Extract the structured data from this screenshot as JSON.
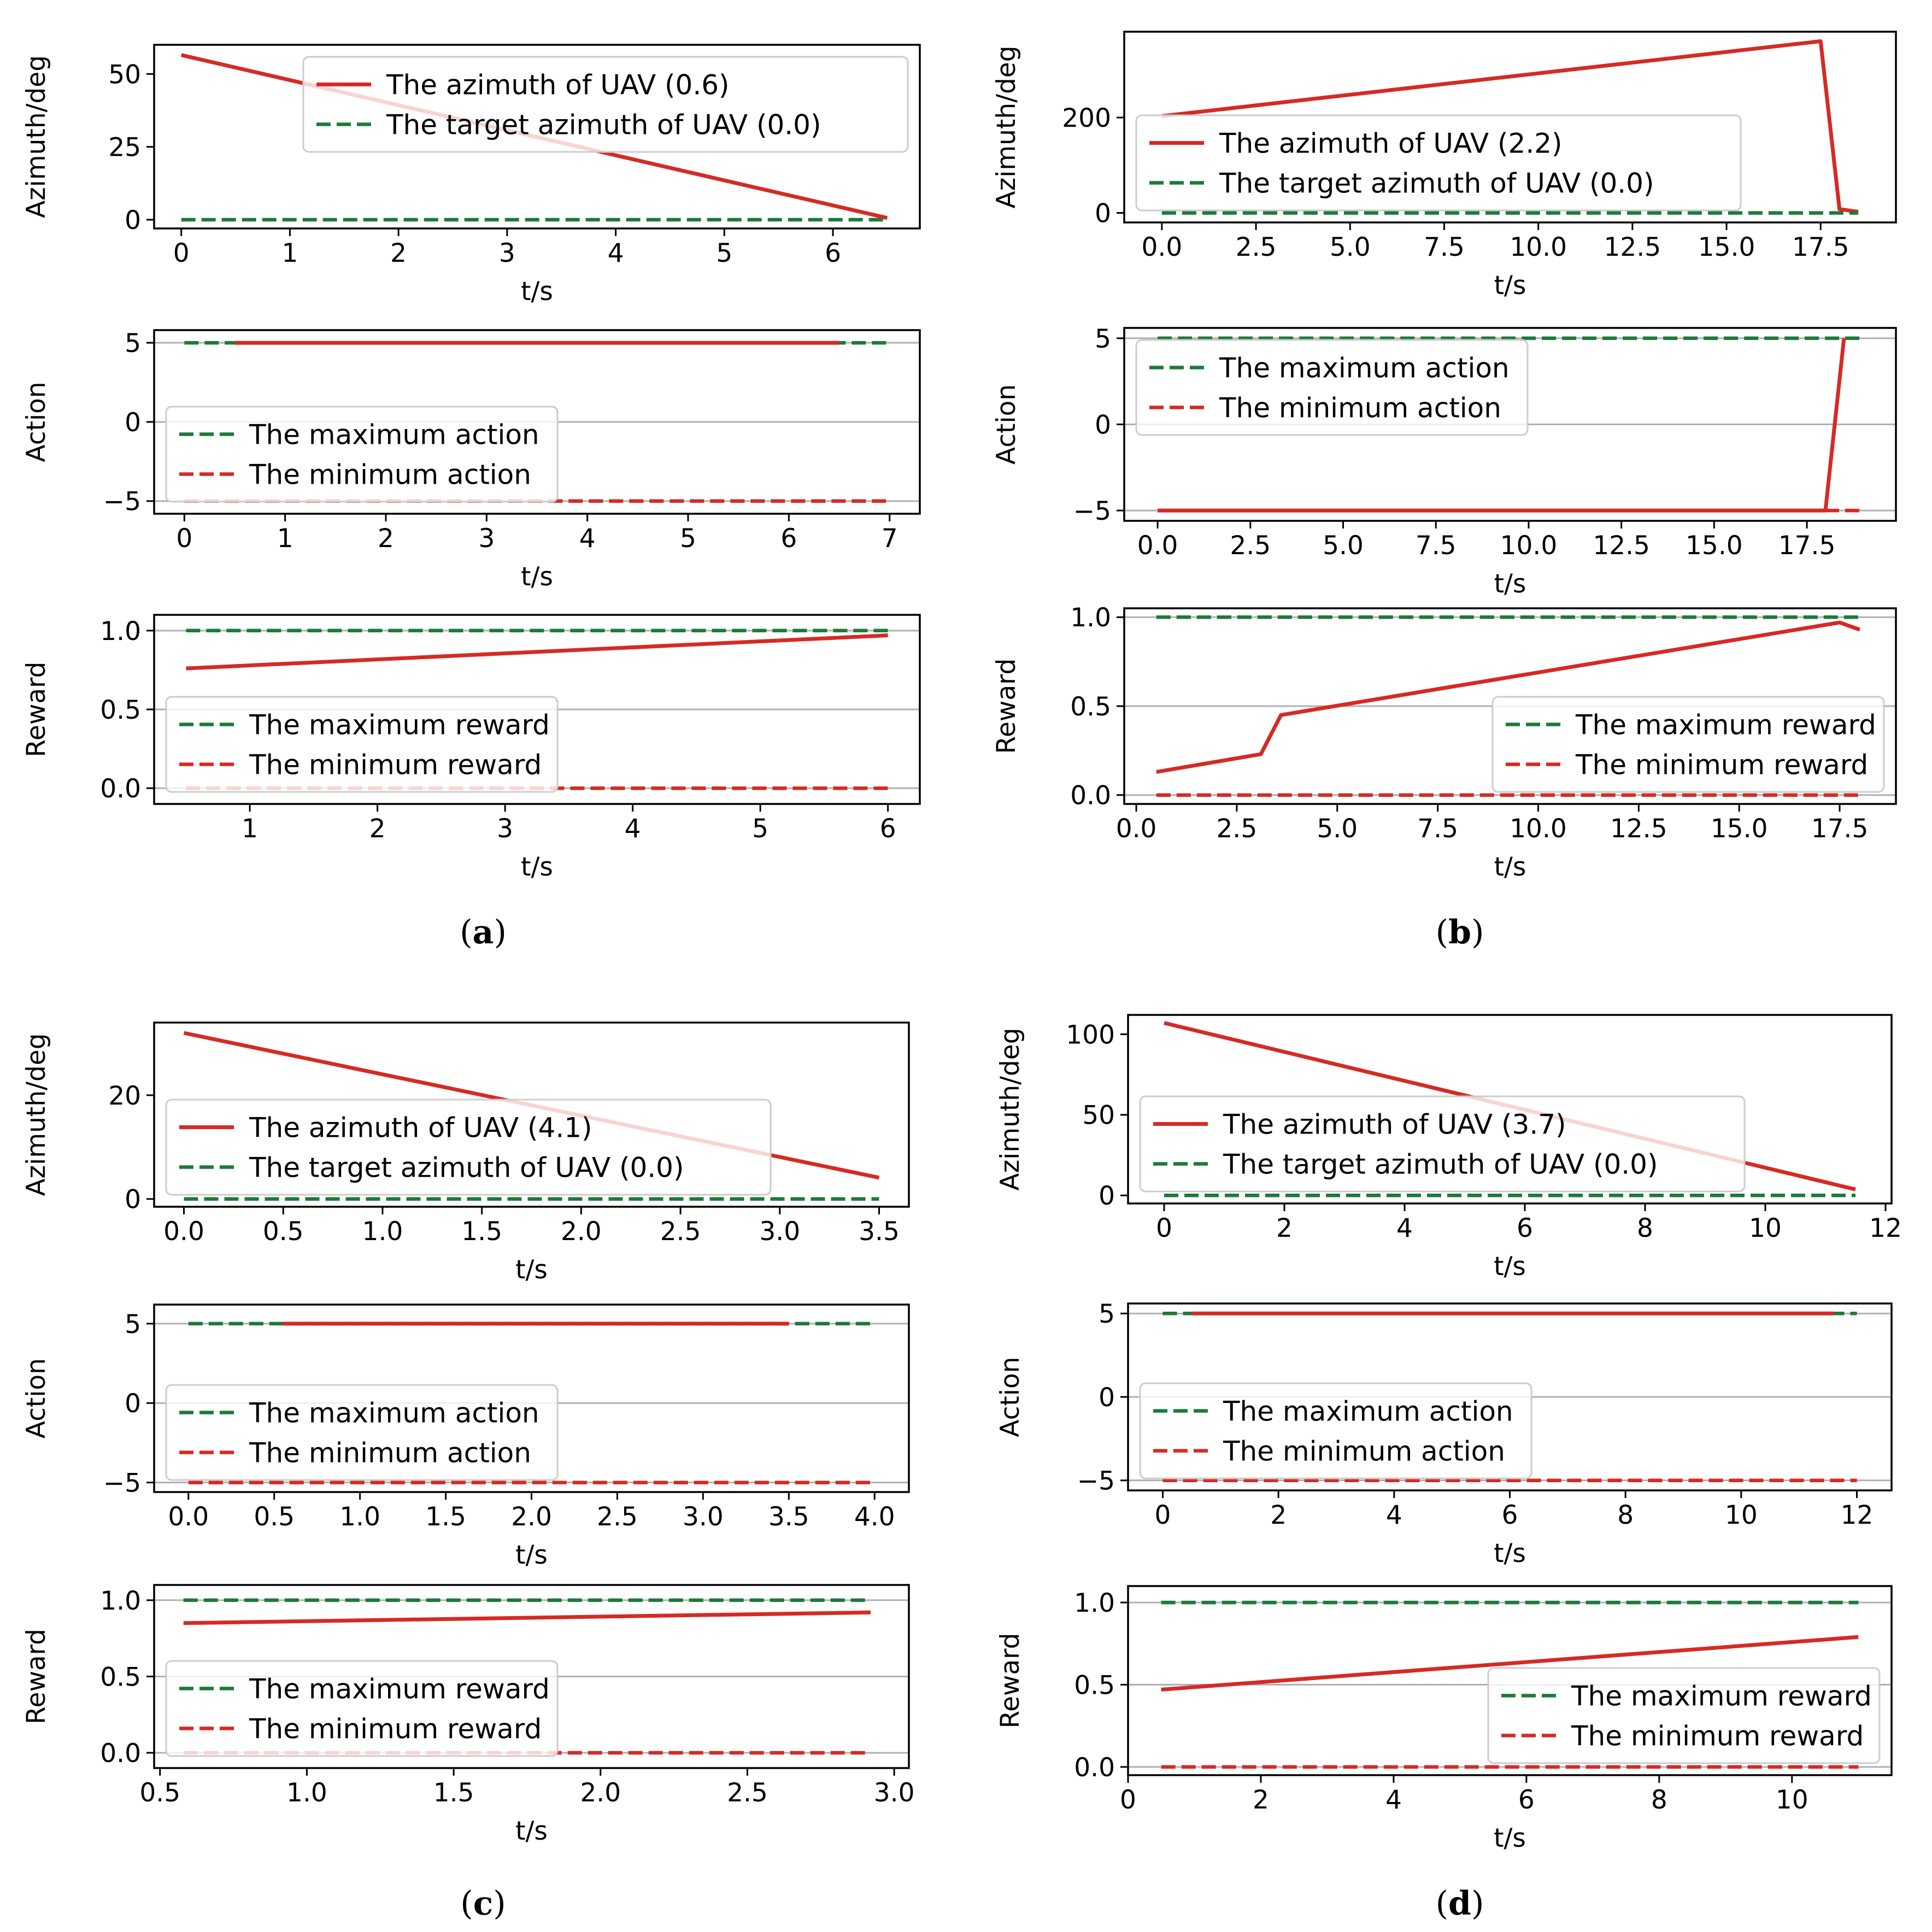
{
  "colors": {
    "red": "#d62a24",
    "green": "#1e7a3a",
    "grid": "#b0b0b0",
    "axis": "#000000"
  },
  "panels": [
    {
      "caption_letter": "a",
      "caption_open": "(",
      "caption_close": ")"
    },
    {
      "caption_letter": "b",
      "caption_open": "(",
      "caption_close": ")"
    },
    {
      "caption_letter": "c",
      "caption_open": "(",
      "caption_close": ")"
    },
    {
      "caption_letter": "d",
      "caption_open": "(",
      "caption_close": ")"
    }
  ],
  "chart_data": [
    {
      "type": "line",
      "panel": "a",
      "role": "azimuth",
      "xlabel": "t/s",
      "ylabel": "Azimuth/deg",
      "xlim": [
        -0.25,
        6.8
      ],
      "ylim": [
        -3,
        60
      ],
      "xticks": [
        0,
        1,
        2,
        3,
        4,
        5,
        6
      ],
      "xtick_labels": [
        "0",
        "1",
        "2",
        "3",
        "4",
        "5",
        "6"
      ],
      "yticks": [
        0,
        25,
        50
      ],
      "ytick_labels": [
        "0",
        "25",
        "50"
      ],
      "grid_y": false,
      "legend": "top-right",
      "series": [
        {
          "name": "The azimuth of UAV (0.6)",
          "color": "red",
          "dash": false,
          "x": [
            0,
            6.5
          ],
          "y": [
            56.5,
            0.6
          ]
        },
        {
          "name": "The target azimuth of UAV (0.0)",
          "color": "green",
          "dash": true,
          "x": [
            0,
            6.5
          ],
          "y": [
            0,
            0
          ]
        }
      ]
    },
    {
      "type": "line",
      "panel": "a",
      "role": "action",
      "xlabel": "t/s",
      "ylabel": "Action",
      "xlim": [
        -0.3,
        7.3
      ],
      "ylim": [
        -5.8,
        5.8
      ],
      "xticks": [
        0,
        1,
        2,
        3,
        4,
        5,
        6,
        7
      ],
      "xtick_labels": [
        "0",
        "1",
        "2",
        "3",
        "4",
        "5",
        "6",
        "7"
      ],
      "yticks": [
        -5,
        0,
        5
      ],
      "ytick_labels": [
        "−5",
        "0",
        "5"
      ],
      "grid_y": true,
      "legend": "lower-left",
      "series": [
        {
          "name": "The maximum action",
          "color": "green",
          "dash": true,
          "x": [
            0,
            7
          ],
          "y": [
            5,
            5
          ]
        },
        {
          "name": "The minimum action",
          "color": "red",
          "dash": true,
          "x": [
            0,
            7
          ],
          "y": [
            -5,
            -5
          ]
        },
        {
          "name": "",
          "color": "red",
          "dash": false,
          "x": [
            0.5,
            6.5
          ],
          "y": [
            5,
            5
          ]
        }
      ]
    },
    {
      "type": "line",
      "panel": "a",
      "role": "reward",
      "xlabel": "t/s",
      "ylabel": "Reward",
      "xlim": [
        0.25,
        6.25
      ],
      "ylim": [
        -0.1,
        1.1
      ],
      "xticks": [
        1,
        2,
        3,
        4,
        5,
        6
      ],
      "xtick_labels": [
        "1",
        "2",
        "3",
        "4",
        "5",
        "6"
      ],
      "yticks": [
        0,
        0.5,
        1.0
      ],
      "ytick_labels": [
        "0.0",
        "0.5",
        "1.0"
      ],
      "grid_y": true,
      "legend": "lower-left",
      "series": [
        {
          "name": "The maximum reward",
          "color": "green",
          "dash": true,
          "x": [
            0.5,
            6
          ],
          "y": [
            1,
            1
          ]
        },
        {
          "name": "The minimum reward",
          "color": "red",
          "dash": true,
          "x": [
            0.5,
            6
          ],
          "y": [
            0,
            0
          ]
        },
        {
          "name": "",
          "color": "red",
          "dash": false,
          "x": [
            0.5,
            6
          ],
          "y": [
            0.76,
            0.97
          ]
        }
      ]
    },
    {
      "type": "line",
      "panel": "b",
      "role": "azimuth",
      "xlabel": "t/s",
      "ylabel": "Azimuth/deg",
      "xlim": [
        -1.0,
        19.5
      ],
      "ylim": [
        -20,
        380
      ],
      "xticks": [
        0,
        2.5,
        5,
        7.5,
        10,
        12.5,
        15,
        17.5
      ],
      "xtick_labels": [
        "0.0",
        "2.5",
        "5.0",
        "7.5",
        "10.0",
        "12.5",
        "15.0",
        "17.5"
      ],
      "yticks": [
        0,
        200
      ],
      "ytick_labels": [
        "0",
        "200"
      ],
      "grid_y": false,
      "legend": "lower-left",
      "series": [
        {
          "name": "The azimuth of UAV (2.2)",
          "color": "red",
          "dash": false,
          "x": [
            0,
            17.5,
            18.0,
            18.5
          ],
          "y": [
            203,
            360,
            8,
            2.2
          ]
        },
        {
          "name": "The target azimuth of UAV (0.0)",
          "color": "green",
          "dash": true,
          "x": [
            0,
            18.5
          ],
          "y": [
            0,
            0
          ]
        }
      ]
    },
    {
      "type": "line",
      "panel": "b",
      "role": "action",
      "xlabel": "t/s",
      "ylabel": "Action",
      "xlim": [
        -0.9,
        19.9
      ],
      "ylim": [
        -5.6,
        5.6
      ],
      "xticks": [
        0,
        2.5,
        5,
        7.5,
        10,
        12.5,
        15,
        17.5
      ],
      "xtick_labels": [
        "0.0",
        "2.5",
        "5.0",
        "7.5",
        "10.0",
        "12.5",
        "15.0",
        "17.5"
      ],
      "yticks": [
        -5,
        0,
        5
      ],
      "ytick_labels": [
        "−5",
        "0",
        "5"
      ],
      "grid_y": true,
      "legend": "top-left",
      "series": [
        {
          "name": "The maximum action",
          "color": "green",
          "dash": true,
          "x": [
            0,
            19
          ],
          "y": [
            5,
            5
          ]
        },
        {
          "name": "The minimum action",
          "color": "red",
          "dash": true,
          "x": [
            0,
            19
          ],
          "y": [
            -5,
            -5
          ]
        },
        {
          "name": "",
          "color": "red",
          "dash": false,
          "x": [
            0,
            18.0,
            18.5
          ],
          "y": [
            -5,
            -5,
            5
          ]
        }
      ]
    },
    {
      "type": "line",
      "panel": "b",
      "role": "reward",
      "xlabel": "t/s",
      "ylabel": "Reward",
      "xlim": [
        -0.3,
        18.9
      ],
      "ylim": [
        -0.05,
        1.05
      ],
      "xticks": [
        0,
        2.5,
        5,
        7.5,
        10,
        12.5,
        15,
        17.5
      ],
      "xtick_labels": [
        "0.0",
        "2.5",
        "5.0",
        "7.5",
        "10.0",
        "12.5",
        "15.0",
        "17.5"
      ],
      "yticks": [
        0,
        0.5,
        1.0
      ],
      "ytick_labels": [
        "0.0",
        "0.5",
        "1.0"
      ],
      "grid_y": true,
      "legend": "lower-right",
      "series": [
        {
          "name": "The maximum reward",
          "color": "green",
          "dash": true,
          "x": [
            0.5,
            18
          ],
          "y": [
            1,
            1
          ]
        },
        {
          "name": "The minimum reward",
          "color": "red",
          "dash": true,
          "x": [
            0.5,
            18
          ],
          "y": [
            0,
            0
          ]
        },
        {
          "name": "",
          "color": "red",
          "dash": false,
          "x": [
            0.5,
            3.1,
            3.6,
            17.5,
            18.0
          ],
          "y": [
            0.13,
            0.23,
            0.45,
            0.97,
            0.93
          ]
        }
      ]
    },
    {
      "type": "line",
      "panel": "c",
      "role": "azimuth",
      "xlabel": "t/s",
      "ylabel": "Azimuth/deg",
      "xlim": [
        -0.15,
        3.65
      ],
      "ylim": [
        -1.5,
        34
      ],
      "xticks": [
        0,
        0.5,
        1.0,
        1.5,
        2.0,
        2.5,
        3.0,
        3.5
      ],
      "xtick_labels": [
        "0.0",
        "0.5",
        "1.0",
        "1.5",
        "2.0",
        "2.5",
        "3.0",
        "3.5"
      ],
      "yticks": [
        0,
        20
      ],
      "ytick_labels": [
        "0",
        "20"
      ],
      "grid_y": false,
      "legend": "lower-left",
      "series": [
        {
          "name": "The azimuth of UAV (4.1)",
          "color": "red",
          "dash": false,
          "x": [
            0,
            3.5
          ],
          "y": [
            32,
            4.1
          ]
        },
        {
          "name": "The target azimuth of UAV (0.0)",
          "color": "green",
          "dash": true,
          "x": [
            0,
            3.5
          ],
          "y": [
            0,
            0
          ]
        }
      ]
    },
    {
      "type": "line",
      "panel": "c",
      "role": "action",
      "xlabel": "t/s",
      "ylabel": "Action",
      "xlim": [
        -0.2,
        4.2
      ],
      "ylim": [
        -5.6,
        6.2
      ],
      "xticks": [
        0,
        0.5,
        1.0,
        1.5,
        2.0,
        2.5,
        3.0,
        3.5,
        4.0
      ],
      "xtick_labels": [
        "0.0",
        "0.5",
        "1.0",
        "1.5",
        "2.0",
        "2.5",
        "3.0",
        "3.5",
        "4.0"
      ],
      "yticks": [
        -5,
        0,
        5
      ],
      "ytick_labels": [
        "−5",
        "0",
        "5"
      ],
      "grid_y": true,
      "legend": "lower-left",
      "series": [
        {
          "name": "The maximum action",
          "color": "green",
          "dash": true,
          "x": [
            0,
            4
          ],
          "y": [
            5,
            5
          ]
        },
        {
          "name": "The minimum action",
          "color": "red",
          "dash": true,
          "x": [
            0,
            4
          ],
          "y": [
            -5,
            -5
          ]
        },
        {
          "name": "",
          "color": "red",
          "dash": false,
          "x": [
            0.55,
            3.5
          ],
          "y": [
            5,
            5
          ]
        }
      ]
    },
    {
      "type": "line",
      "panel": "c",
      "role": "reward",
      "xlabel": "t/s",
      "ylabel": "Reward",
      "xlim": [
        0.48,
        3.05
      ],
      "ylim": [
        -0.1,
        1.1
      ],
      "xticks": [
        0.5,
        1.0,
        1.5,
        2.0,
        2.5,
        3.0
      ],
      "xtick_labels": [
        "0.5",
        "1.0",
        "1.5",
        "2.0",
        "2.5",
        "3.0"
      ],
      "yticks": [
        0,
        0.5,
        1.0
      ],
      "ytick_labels": [
        "0.0",
        "0.5",
        "1.0"
      ],
      "grid_y": true,
      "legend": "lower-left",
      "series": [
        {
          "name": "The maximum reward",
          "color": "green",
          "dash": true,
          "x": [
            0.58,
            2.92
          ],
          "y": [
            1,
            1
          ]
        },
        {
          "name": "The minimum reward",
          "color": "red",
          "dash": true,
          "x": [
            0.58,
            2.92
          ],
          "y": [
            0,
            0
          ]
        },
        {
          "name": "",
          "color": "red",
          "dash": false,
          "x": [
            0.58,
            2.92
          ],
          "y": [
            0.85,
            0.92
          ]
        }
      ]
    },
    {
      "type": "line",
      "panel": "d",
      "role": "azimuth",
      "xlabel": "t/s",
      "ylabel": "Azimuth/deg",
      "xlim": [
        -0.6,
        12.1
      ],
      "ylim": [
        -5,
        112
      ],
      "xticks": [
        0,
        2,
        4,
        6,
        8,
        10,
        12
      ],
      "xtick_labels": [
        "0",
        "2",
        "4",
        "6",
        "8",
        "10",
        "12"
      ],
      "yticks": [
        0,
        50,
        100
      ],
      "ytick_labels": [
        "0",
        "50",
        "100"
      ],
      "grid_y": false,
      "legend": "lower-left",
      "series": [
        {
          "name": "The azimuth of UAV (3.7)",
          "color": "red",
          "dash": false,
          "x": [
            0,
            11.5
          ],
          "y": [
            107,
            3.7
          ]
        },
        {
          "name": "The target azimuth of UAV (0.0)",
          "color": "green",
          "dash": true,
          "x": [
            0,
            11.5
          ],
          "y": [
            0,
            0
          ]
        }
      ]
    },
    {
      "type": "line",
      "panel": "d",
      "role": "action",
      "xlabel": "t/s",
      "ylabel": "Action",
      "xlim": [
        -0.6,
        12.6
      ],
      "ylim": [
        -5.6,
        5.6
      ],
      "xticks": [
        0,
        2,
        4,
        6,
        8,
        10,
        12
      ],
      "xtick_labels": [
        "0",
        "2",
        "4",
        "6",
        "8",
        "10",
        "12"
      ],
      "yticks": [
        -5,
        0,
        5
      ],
      "ytick_labels": [
        "−5",
        "0",
        "5"
      ],
      "grid_y": true,
      "legend": "lower-left",
      "series": [
        {
          "name": "The maximum action",
          "color": "green",
          "dash": true,
          "x": [
            0,
            12
          ],
          "y": [
            5,
            5
          ]
        },
        {
          "name": "The minimum action",
          "color": "red",
          "dash": true,
          "x": [
            0,
            12
          ],
          "y": [
            -5,
            -5
          ]
        },
        {
          "name": "",
          "color": "red",
          "dash": false,
          "x": [
            0.5,
            11.6
          ],
          "y": [
            5,
            5
          ]
        }
      ]
    },
    {
      "type": "line",
      "panel": "d",
      "role": "reward",
      "xlabel": "t/s",
      "ylabel": "Reward",
      "xlim": [
        0,
        11.5
      ],
      "ylim": [
        -0.05,
        1.1
      ],
      "xticks": [
        0,
        2,
        4,
        6,
        8,
        10
      ],
      "xtick_labels": [
        "0",
        "2",
        "4",
        "6",
        "8",
        "10"
      ],
      "yticks": [
        0,
        0.5,
        1.0
      ],
      "ytick_labels": [
        "0.0",
        "0.5",
        "1.0"
      ],
      "grid_y": true,
      "legend": "lower-right",
      "series": [
        {
          "name": "The maximum reward",
          "color": "green",
          "dash": true,
          "x": [
            0.5,
            11
          ],
          "y": [
            1,
            1
          ]
        },
        {
          "name": "The minimum reward",
          "color": "red",
          "dash": true,
          "x": [
            0.5,
            11
          ],
          "y": [
            0,
            0
          ]
        },
        {
          "name": "",
          "color": "red",
          "dash": false,
          "x": [
            0.5,
            11
          ],
          "y": [
            0.47,
            0.79
          ]
        }
      ]
    }
  ]
}
